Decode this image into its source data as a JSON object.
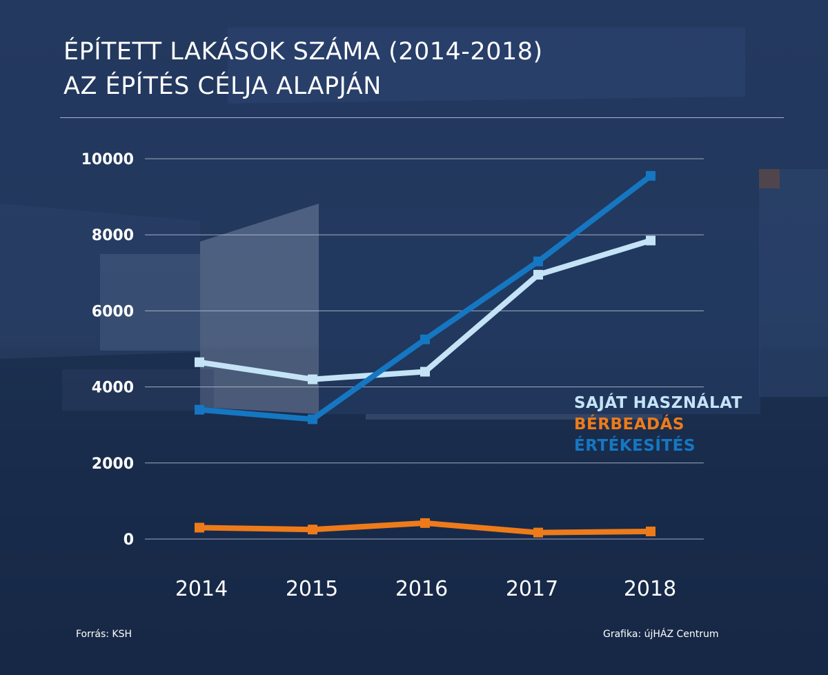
{
  "title_lines": [
    "ÉPÍTETT LAKÁSOK SZÁMA (2014-2018)",
    "AZ ÉPÍTÉS CÉLJA ALAPJÁN"
  ],
  "footer": {
    "source": "Forrás: KSH",
    "credit": "Grafika: újHÁZ Centrum"
  },
  "chart_data": {
    "type": "line",
    "x": [
      "2014",
      "2015",
      "2016",
      "2017",
      "2018"
    ],
    "ylim": [
      0,
      10000
    ],
    "yticks": [
      0,
      2000,
      4000,
      6000,
      8000,
      10000
    ],
    "grid": true,
    "legend_position": "right",
    "series": [
      {
        "name": "SAJÁT HASZNÁLAT",
        "color": "#c4e3f7",
        "values": [
          4650,
          4200,
          4400,
          6950,
          7850
        ]
      },
      {
        "name": "BÉRBEADÁS",
        "color": "#ee7b1a",
        "values": [
          300,
          250,
          420,
          170,
          200
        ]
      },
      {
        "name": "ÉRTÉKESÍTÉS",
        "color": "#1577c2",
        "values": [
          3400,
          3150,
          5250,
          7300,
          9550
        ]
      }
    ]
  },
  "colors": {
    "background": "#1f355a",
    "grid": "#b7c2d4",
    "text": "#ffffff"
  }
}
